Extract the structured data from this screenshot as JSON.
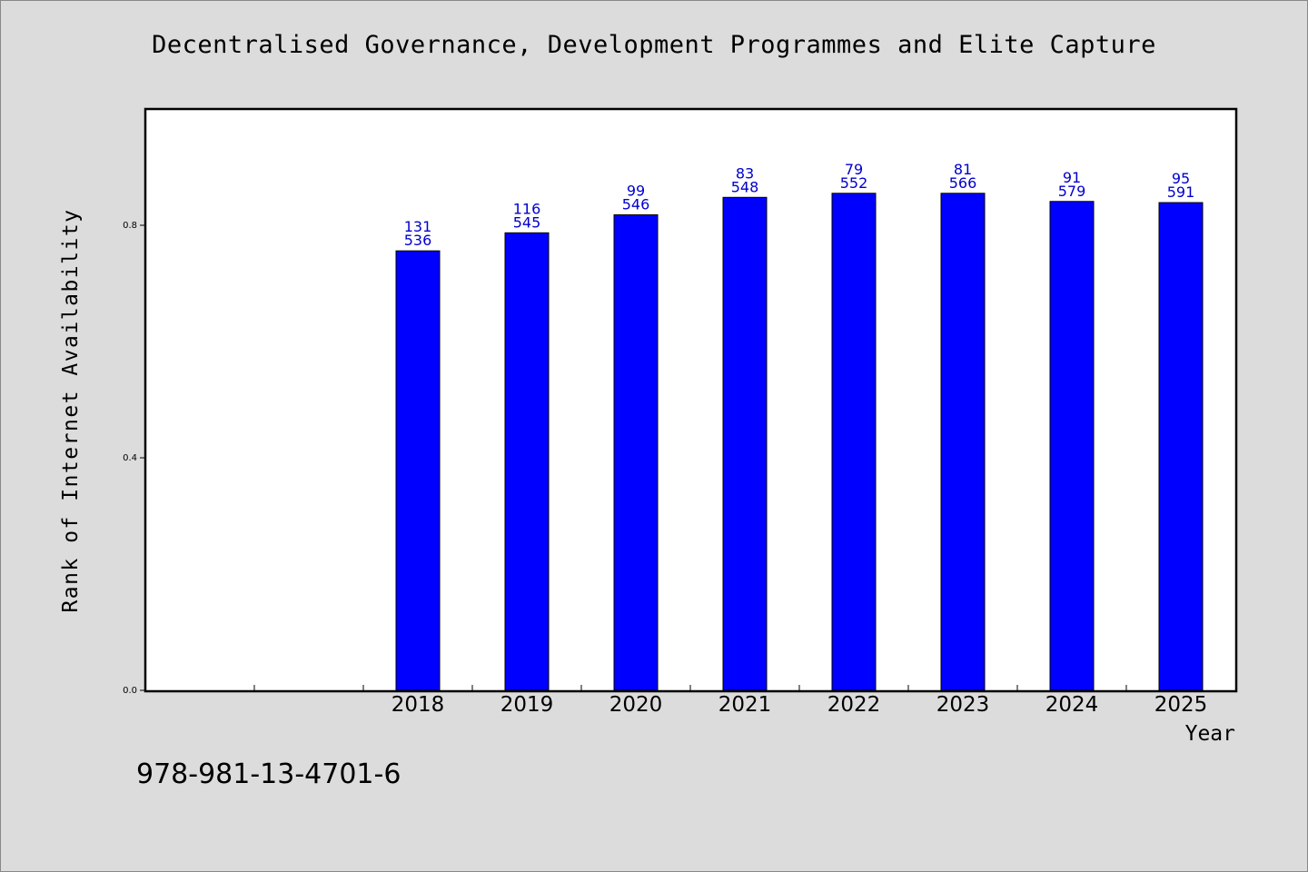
{
  "chart_data": {
    "type": "bar",
    "title": "Decentralised Governance, Development Programmes and Elite Capture",
    "xlabel": "Year",
    "ylabel": "Rank of Internet Availability",
    "categories": [
      "",
      "",
      "2018",
      "2019",
      "2020",
      "2021",
      "2022",
      "2023",
      "2024",
      "2025"
    ],
    "values": [
      null,
      null,
      0.756,
      0.787,
      0.818,
      0.848,
      0.855,
      0.855,
      0.841,
      0.839
    ],
    "label_top": [
      "",
      "",
      "131",
      "116",
      "99",
      "83",
      "79",
      "81",
      "91",
      "95"
    ],
    "label_bottom": [
      "",
      "",
      "536",
      "545",
      "546",
      "548",
      "552",
      "566",
      "579",
      "591"
    ],
    "ylim": [
      0,
      1.0
    ],
    "yticks": [
      0.0,
      0.4,
      0.8
    ],
    "ytick_labels": [
      "0.0",
      "0.4",
      "0.8"
    ],
    "bar_color": "#0000ff",
    "label_color": "#0000cc",
    "grid": false,
    "legend": "none"
  },
  "footer": {
    "isbn": "978-981-13-4701-6"
  }
}
